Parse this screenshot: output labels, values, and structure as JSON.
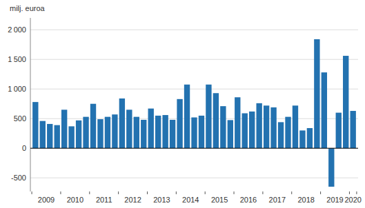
{
  "chart_data": {
    "type": "bar",
    "ylabel": "milj. euroa",
    "categories": [
      "2009",
      null,
      null,
      null,
      "2010",
      null,
      null,
      null,
      "2011",
      null,
      null,
      null,
      "2012",
      null,
      null,
      null,
      "2013",
      null,
      null,
      null,
      "2014",
      null,
      null,
      null,
      "2015",
      null,
      null,
      null,
      "2016",
      null,
      null,
      null,
      "2017",
      null,
      null,
      null,
      "2018",
      null,
      null,
      null,
      "2019",
      null,
      null,
      null,
      "2020"
    ],
    "values": [
      780,
      460,
      410,
      390,
      650,
      370,
      470,
      530,
      750,
      490,
      530,
      570,
      840,
      650,
      530,
      480,
      670,
      550,
      560,
      480,
      830,
      1075,
      520,
      550,
      1075,
      930,
      710,
      475,
      860,
      590,
      620,
      760,
      720,
      690,
      440,
      530,
      720,
      300,
      340,
      1840,
      1280,
      -650,
      600,
      1560,
      630
    ],
    "color": "#2372b0",
    "ylim": [
      -730,
      2200
    ],
    "yticks": [
      -500,
      0,
      500,
      {
        "value": 1000,
        "label": "1 000"
      },
      {
        "value": 1500,
        "label": "1 500"
      },
      {
        "value": 2000,
        "label": "2 000"
      }
    ],
    "grid": true
  }
}
